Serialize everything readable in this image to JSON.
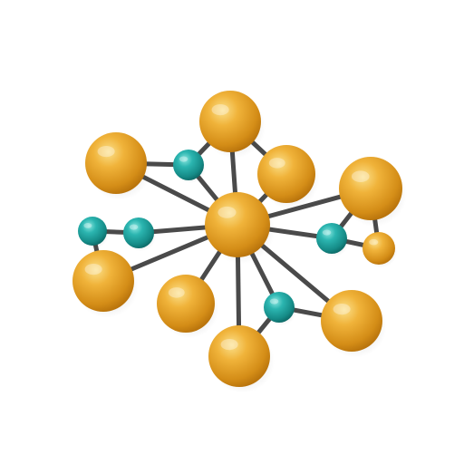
{
  "scene": {
    "subject": "molecule-network",
    "background_color": "#ffffff",
    "bond_color": "#4a4a4a",
    "atom_colors": {
      "gold": {
        "base": "#e9a22a",
        "light": "#f8d06a",
        "dark": "#c27a0e"
      },
      "teal": {
        "base": "#1fa3a0",
        "light": "#6fd6d0",
        "dark": "#117572"
      }
    }
  }
}
